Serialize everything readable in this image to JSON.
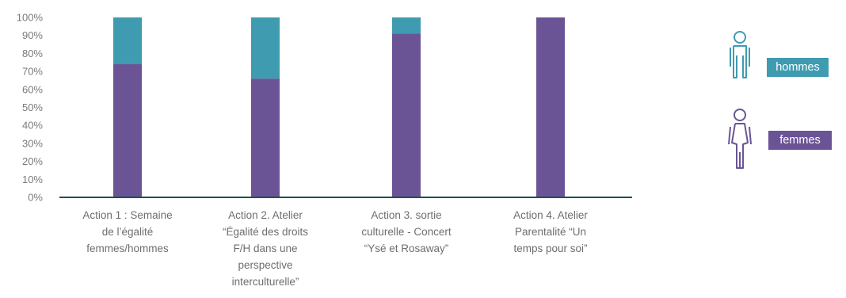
{
  "chart_data": {
    "type": "bar",
    "stacked": true,
    "percent_stacked": true,
    "title": "",
    "xlabel": "",
    "ylabel": "",
    "ylim": [
      0,
      100
    ],
    "yticks": [
      "0%",
      "10%",
      "20%",
      "30%",
      "40%",
      "50%",
      "60%",
      "70%",
      "80%",
      "90%",
      "100%"
    ],
    "categories": [
      [
        "Action 1 : Semaine",
        "de l’égalité",
        "femmes/hommes"
      ],
      [
        "Action 2.  Atelier",
        "“Égalité des droits",
        "F/H dans une",
        "perspective",
        "interculturelle”"
      ],
      [
        "Action 3.  sortie",
        "culturelle -  Concert",
        "“Ysé et Rosaway”"
      ],
      [
        "Action 4. Atelier",
        "Parentalité “Un",
        "temps pour soi”"
      ]
    ],
    "series": [
      {
        "name": "femmes",
        "color": "#6a5496",
        "values": [
          74,
          66,
          91,
          100
        ]
      },
      {
        "name": "hommes",
        "color": "#3f9bb0",
        "values": [
          26,
          34,
          9,
          0
        ]
      }
    ],
    "grid": false,
    "legend": "right"
  },
  "legend": {
    "hommes": {
      "label": "hommes",
      "icon": "man-icon",
      "color": "#3f9bb0"
    },
    "femmes": {
      "label": "femmes",
      "icon": "woman-icon",
      "color": "#6a5496"
    }
  }
}
